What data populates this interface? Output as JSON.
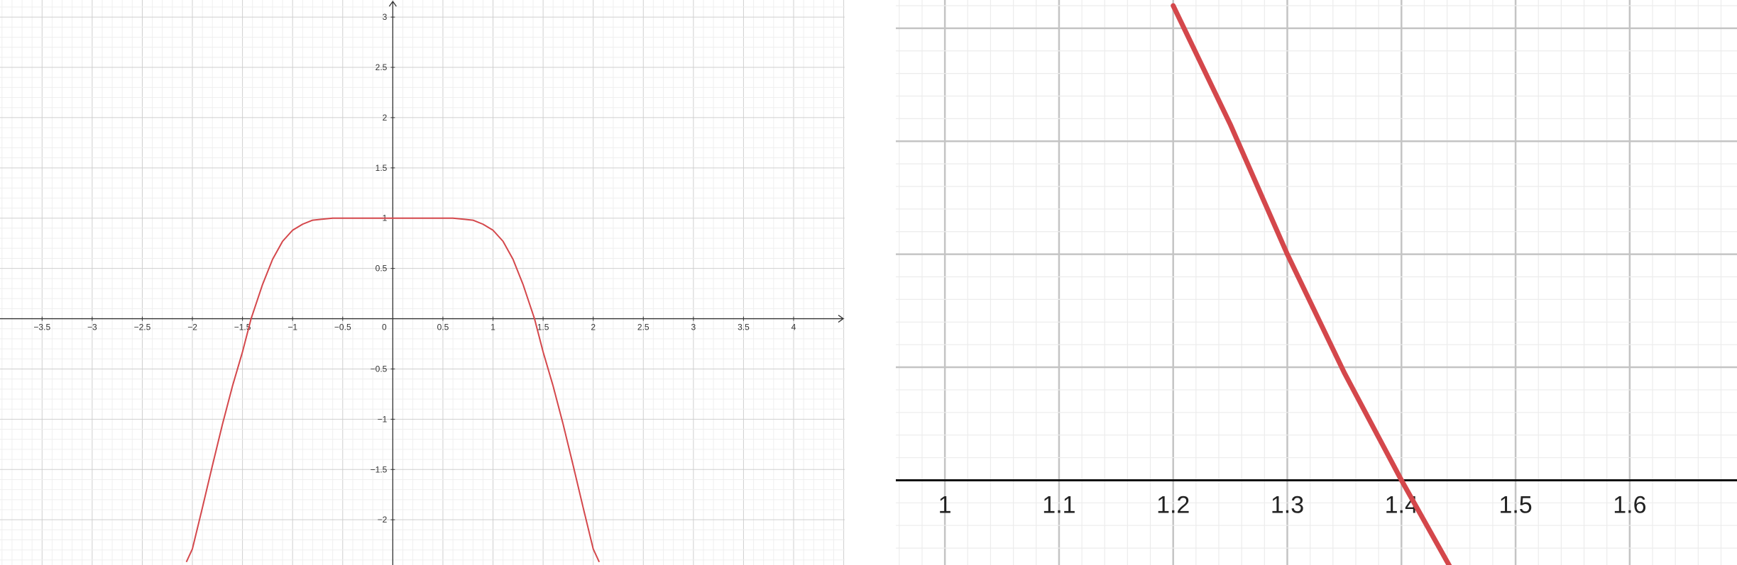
{
  "chart_data": [
    {
      "type": "line",
      "title": "",
      "xlabel": "",
      "ylabel": "",
      "xlim": [
        -3.92,
        4.51
      ],
      "ylim": [
        -2.45,
        3.17
      ],
      "grid": true,
      "minor_grid": true,
      "x_ticks": [
        "−3.5",
        "−3",
        "−2.5",
        "−2",
        "−1.5",
        "−1",
        "−0.5",
        "0",
        "0.5",
        "1",
        "1.5",
        "2",
        "2.5",
        "3",
        "3.5",
        "4"
      ],
      "y_ticks": [
        "3",
        "2.5",
        "2",
        "1.5",
        "1",
        "0.5",
        "−0.5",
        "−1",
        "−1.5",
        "−2"
      ],
      "series": [
        {
          "color": "#d4474b",
          "x": [
            -2.06,
            -2.0,
            -1.9,
            -1.8,
            -1.7,
            -1.6,
            -1.5,
            -1.414,
            -1.3,
            -1.2,
            -1.1,
            -1.0,
            -0.9,
            -0.8,
            -0.7,
            -0.6,
            -0.5,
            -0.4,
            -0.3,
            -0.2,
            -0.1,
            0.0,
            0.1,
            0.2,
            0.3,
            0.4,
            0.5,
            0.6,
            0.7,
            0.8,
            0.9,
            1.0,
            1.1,
            1.2,
            1.3,
            1.414,
            1.5,
            1.6,
            1.7,
            1.8,
            1.9,
            2.0,
            2.06
          ],
          "y": [
            -2.42,
            -2.29,
            -1.88,
            -1.46,
            -1.05,
            -0.67,
            -0.33,
            0.0,
            0.34,
            0.59,
            0.77,
            0.88,
            0.94,
            0.98,
            0.99,
            1.0,
            1.0,
            1.0,
            1.0,
            1.0,
            1.0,
            1.0,
            1.0,
            1.0,
            1.0,
            1.0,
            1.0,
            1.0,
            0.99,
            0.98,
            0.94,
            0.88,
            0.77,
            0.59,
            0.34,
            0.0,
            -0.33,
            -0.67,
            -1.05,
            -1.46,
            -1.88,
            -2.29,
            -2.42
          ]
        }
      ]
    },
    {
      "type": "line",
      "title": "",
      "xlabel": "",
      "ylabel": "",
      "xlim": [
        0.957,
        1.694
      ],
      "ylim": [
        -0.075,
        0.425
      ],
      "grid": true,
      "minor_grid": true,
      "x_ticks": [
        "1",
        "1.1",
        "1.2",
        "1.3",
        "1.4",
        "1.5",
        "1.6",
        "1"
      ],
      "series": [
        {
          "color": "#d4474b",
          "x": [
            1.2,
            1.25,
            1.3,
            1.35,
            1.4,
            1.45
          ],
          "y": [
            0.42,
            0.315,
            0.2,
            0.095,
            0.0,
            -0.09
          ]
        }
      ]
    }
  ]
}
